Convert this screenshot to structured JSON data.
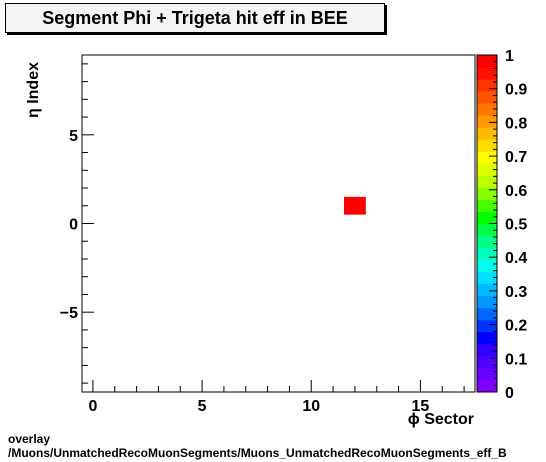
{
  "chart_data": {
    "type": "heatmap",
    "title": "Segment Phi + Trigeta hit eff in BEE",
    "xlabel": "ϕ Sector",
    "ylabel": "η Index",
    "xlim": [
      -0.5,
      17.5
    ],
    "ylim": [
      -9.5,
      9.5
    ],
    "xticks": [
      0,
      5,
      10,
      15
    ],
    "xtick_labels": [
      "0",
      "5",
      "10",
      "15"
    ],
    "yticks": [
      -5,
      0,
      5
    ],
    "ytick_labels": [
      "−5",
      "0",
      "5"
    ],
    "cells": [
      {
        "x": 12,
        "y": 1,
        "value": 1.0
      }
    ],
    "color_scale": {
      "min": 0,
      "max": 1,
      "ticks": [
        0,
        0.1,
        0.2,
        0.3,
        0.4,
        0.5,
        0.6,
        0.7,
        0.8,
        0.9,
        1
      ],
      "tick_labels": [
        "0",
        "0.1",
        "0.2",
        "0.3",
        "0.4",
        "0.5",
        "0.6",
        "0.7",
        "0.8",
        "0.9",
        "1"
      ],
      "colors": [
        "#7f00ff",
        "#6a00ff",
        "#4f00ff",
        "#3300ff",
        "#0000ff",
        "#0033ff",
        "#0066ff",
        "#0099ff",
        "#00bbff",
        "#00ddff",
        "#00ffee",
        "#00ffbb",
        "#00ff88",
        "#00ff44",
        "#00ff00",
        "#44ff00",
        "#88ff00",
        "#bbff00",
        "#ddff00",
        "#ffff00",
        "#ffdd00",
        "#ffbb00",
        "#ff9900",
        "#ff7700",
        "#ff5500",
        "#ff3300",
        "#ff1100",
        "#ff0000"
      ]
    }
  },
  "footer": {
    "line1": "overlay",
    "line2": "/Muons/UnmatchedRecoMuonSegments/Muons_UnmatchedRecoMuonSegments_eff_B"
  }
}
